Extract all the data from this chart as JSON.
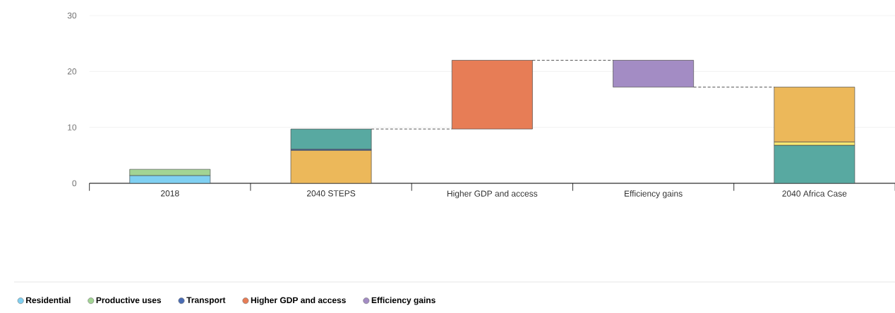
{
  "chart_data": {
    "type": "bar",
    "stacked": true,
    "categories": [
      "2018",
      "2040 STEPS",
      "Higher GDP and access",
      "Efficiency gains",
      "2040 Africa Case"
    ],
    "series": [
      {
        "name": "Residential",
        "color": "#7fd0f2",
        "values": [
          1.4,
          null,
          null,
          null,
          null
        ]
      },
      {
        "name": "Productive uses",
        "color": "#a2d494",
        "values": [
          1.1,
          null,
          null,
          null,
          null
        ]
      },
      {
        "color": "#ecb85a",
        "values": [
          null,
          5.9,
          null,
          null,
          null
        ]
      },
      {
        "name": "Transport",
        "color": "#4a6cb4",
        "values": [
          null,
          0.2,
          null,
          null,
          null
        ]
      },
      {
        "color": "#58a9a1",
        "values": [
          null,
          3.6,
          null,
          null,
          6.8
        ]
      },
      {
        "color": "#f6e671",
        "values": [
          null,
          null,
          null,
          null,
          0.6
        ]
      },
      {
        "color": "#ecb85a",
        "values": [
          null,
          null,
          null,
          null,
          9.8
        ]
      },
      {
        "name": "Higher GDP and access",
        "color": "#e77d56",
        "values": [
          null,
          null,
          12.3,
          null,
          null
        ],
        "base": [
          null,
          null,
          9.7,
          null,
          null
        ]
      },
      {
        "name": "Efficiency gains",
        "color": "#a38cc4",
        "values": [
          null,
          null,
          null,
          -4.8,
          null
        ],
        "base": [
          null,
          null,
          null,
          22,
          null
        ]
      }
    ],
    "ylim": [
      0,
      30
    ],
    "yticks": [
      0,
      10,
      20,
      30
    ],
    "grid": "y",
    "legend": "bottom"
  }
}
